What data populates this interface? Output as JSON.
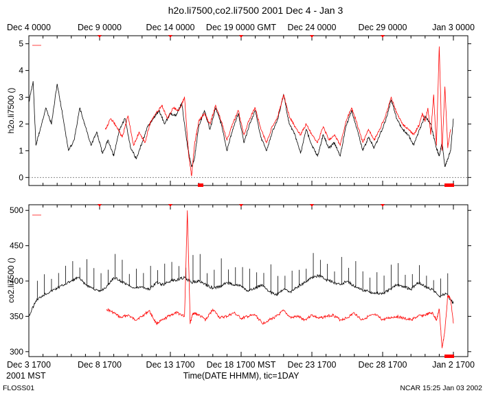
{
  "chart_data": [
    {
      "type": "line",
      "panel": "upper",
      "title": "h2o.li7500,co2.li7500 2001 Dec 4 - Jan 3",
      "ylabel": "h2o.li7500 ()",
      "ylim": [
        -0.3,
        5.3
      ],
      "yticks": [
        0,
        1,
        2,
        3,
        4,
        5
      ],
      "top_axis_labels": [
        "Dec  4 0000",
        "Dec  9 0000",
        "Dec 14 0000",
        "Dec 19 0000 GMT",
        "Dec 24 0000",
        "Dec 29 0000",
        "Jan  3 0000"
      ],
      "zero_reference_line": 0,
      "series": [
        {
          "name": "black",
          "color": "#000000",
          "day": [
            0.0,
            0.3,
            0.5,
            0.8,
            1.2,
            1.6,
            2.0,
            2.4,
            2.8,
            3.2,
            3.6,
            4.0,
            4.4,
            4.8,
            5.2,
            5.6,
            6.0,
            6.4,
            6.8,
            7.2,
            7.6,
            8.0,
            8.4,
            8.8,
            9.2,
            9.6,
            10.0,
            10.4,
            10.8,
            11.2,
            11.5,
            11.7,
            12.0,
            12.4,
            12.8,
            13.2,
            13.6,
            14.0,
            14.4,
            14.8,
            15.2,
            15.6,
            16.0,
            16.4,
            16.8,
            17.2,
            17.6,
            18.0,
            18.4,
            18.8,
            19.2,
            19.6,
            20.0,
            20.4,
            20.8,
            21.2,
            21.6,
            22.0,
            22.4,
            22.8,
            23.2,
            23.6,
            24.0,
            24.4,
            24.8,
            25.2,
            25.6,
            26.0,
            26.4,
            26.8,
            27.2,
            27.6,
            28.0,
            28.4,
            28.8,
            29.0,
            29.2,
            29.4,
            29.6,
            29.8,
            30.0
          ],
          "values": [
            2.8,
            3.6,
            1.2,
            1.8,
            2.6,
            2.0,
            3.5,
            2.3,
            1.0,
            1.4,
            2.6,
            1.9,
            1.2,
            1.7,
            0.9,
            1.4,
            0.8,
            1.8,
            2.2,
            1.1,
            0.7,
            1.3,
            1.9,
            2.2,
            2.5,
            2.0,
            2.4,
            2.3,
            2.8,
            1.2,
            0.4,
            0.7,
            1.9,
            2.5,
            1.8,
            2.6,
            2.0,
            1.0,
            1.8,
            2.4,
            1.3,
            2.0,
            2.5,
            1.5,
            1.0,
            1.7,
            2.2,
            3.1,
            2.0,
            1.6,
            0.9,
            1.8,
            1.2,
            0.8,
            1.6,
            1.1,
            1.3,
            0.8,
            1.9,
            2.5,
            1.8,
            1.0,
            1.5,
            1.1,
            1.6,
            2.1,
            2.9,
            2.2,
            1.8,
            1.6,
            1.2,
            1.8,
            2.3,
            2.0,
            1.1,
            0.8,
            1.3,
            0.4,
            0.7,
            1.0,
            2.2
          ]
        },
        {
          "name": "red",
          "color": "#ff0000",
          "day": [
            5.4,
            5.8,
            6.2,
            6.6,
            7.0,
            7.4,
            7.8,
            8.2,
            8.6,
            9.0,
            9.4,
            9.8,
            10.2,
            10.6,
            11.0,
            11.3,
            11.5,
            11.7,
            12.0,
            12.4,
            12.8,
            13.2,
            13.6,
            14.0,
            14.4,
            14.8,
            15.2,
            15.6,
            16.0,
            16.4,
            16.8,
            17.2,
            17.6,
            18.0,
            18.4,
            18.8,
            19.2,
            19.6,
            20.0,
            20.4,
            20.8,
            21.2,
            21.6,
            22.0,
            22.4,
            22.8,
            23.2,
            23.6,
            24.0,
            24.4,
            24.8,
            25.2,
            25.6,
            26.0,
            26.4,
            26.8,
            27.2,
            27.6,
            27.8,
            28.0,
            28.2,
            28.4,
            28.6,
            28.8,
            29.0,
            29.2,
            29.4,
            29.6,
            29.8
          ],
          "values": [
            1.8,
            2.2,
            1.9,
            1.5,
            2.3,
            1.2,
            1.7,
            1.3,
            2.1,
            2.4,
            2.7,
            2.2,
            2.6,
            2.5,
            3.0,
            0.8,
            0.05,
            1.2,
            2.1,
            2.4,
            2.0,
            2.7,
            2.1,
            1.4,
            2.0,
            2.5,
            1.6,
            2.2,
            2.6,
            1.8,
            1.3,
            1.9,
            2.3,
            3.1,
            2.3,
            1.9,
            1.6,
            2.0,
            1.6,
            1.3,
            1.9,
            1.4,
            1.6,
            1.2,
            2.1,
            2.6,
            2.0,
            1.3,
            1.8,
            1.4,
            1.8,
            2.3,
            3.0,
            2.4,
            2.0,
            1.8,
            1.6,
            2.0,
            2.4,
            2.1,
            2.6,
            1.6,
            3.1,
            1.2,
            4.9,
            1.0,
            3.4,
            1.1,
            1.8
          ]
        }
      ]
    },
    {
      "type": "line",
      "panel": "lower",
      "ylabel": "co2.li7500 ()",
      "ylim": [
        293,
        508
      ],
      "yticks": [
        300,
        350,
        400,
        450,
        500
      ],
      "xlabel": "Time(DATE HHMM), tic=1DAY",
      "bottom_axis_labels": [
        "Dec  3 1700",
        "Dec  8 1700",
        "Dec 13 1700",
        "Dec 18 1700 MST",
        "Dec 23 1700",
        "Dec 28 1700",
        "Jan  2 1700"
      ],
      "series": [
        {
          "name": "black",
          "color": "#000000",
          "day": [
            0.0,
            0.5,
            1.0,
            1.5,
            2.0,
            2.5,
            3.0,
            3.5,
            4.0,
            4.5,
            5.0,
            5.5,
            6.0,
            6.5,
            7.0,
            7.5,
            8.0,
            8.5,
            9.0,
            9.5,
            10.0,
            10.5,
            11.0,
            11.5,
            12.0,
            12.5,
            13.0,
            13.5,
            14.0,
            14.5,
            15.0,
            15.5,
            16.0,
            16.5,
            17.0,
            17.5,
            18.0,
            18.5,
            19.0,
            19.5,
            20.0,
            20.5,
            21.0,
            21.5,
            22.0,
            22.5,
            23.0,
            23.5,
            24.0,
            24.5,
            25.0,
            25.5,
            26.0,
            26.5,
            27.0,
            27.5,
            28.0,
            28.5,
            29.0,
            29.5,
            30.0
          ],
          "values": [
            350,
            372,
            380,
            385,
            390,
            395,
            400,
            405,
            395,
            390,
            385,
            392,
            405,
            400,
            395,
            390,
            392,
            388,
            398,
            395,
            400,
            402,
            405,
            398,
            400,
            395,
            390,
            392,
            398,
            395,
            393,
            385,
            390,
            395,
            385,
            380,
            388,
            385,
            392,
            398,
            405,
            408,
            402,
            398,
            395,
            400,
            392,
            388,
            385,
            383,
            382,
            388,
            395,
            392,
            388,
            398,
            392,
            388,
            378,
            382,
            368
          ]
        },
        {
          "name": "red",
          "color": "#ff0000",
          "day": [
            5.5,
            6.0,
            6.5,
            7.0,
            7.5,
            8.0,
            8.5,
            9.0,
            9.5,
            10.0,
            10.5,
            11.0,
            11.2,
            11.4,
            11.6,
            12.0,
            12.5,
            13.0,
            13.5,
            14.0,
            14.5,
            15.0,
            15.5,
            16.0,
            16.5,
            17.0,
            17.5,
            18.0,
            18.5,
            19.0,
            19.5,
            20.0,
            20.5,
            21.0,
            21.5,
            22.0,
            22.5,
            23.0,
            23.5,
            24.0,
            24.5,
            25.0,
            25.5,
            26.0,
            26.5,
            27.0,
            27.5,
            28.0,
            28.5,
            28.8,
            29.0,
            29.2,
            29.4,
            29.6,
            29.8,
            30.0
          ],
          "values": [
            360,
            355,
            348,
            352,
            345,
            350,
            358,
            340,
            345,
            352,
            355,
            350,
            500,
            340,
            355,
            352,
            345,
            360,
            348,
            350,
            355,
            347,
            350,
            352,
            340,
            345,
            350,
            358,
            348,
            350,
            345,
            352,
            347,
            350,
            352,
            345,
            348,
            355,
            345,
            350,
            352,
            345,
            348,
            350,
            347,
            345,
            350,
            352,
            355,
            345,
            360,
            305,
            330,
            380,
            375,
            340
          ]
        }
      ]
    }
  ],
  "title": "h2o.li7500,co2.li7500 2001 Dec 4 - Jan 3",
  "bottom_left_label": "2001 MST",
  "footer": {
    "left": "FLOSS01",
    "right": "NCAR 15:25 Jan 03 2002"
  },
  "colors": {
    "series_1": "#000000",
    "series_2": "#ff0000",
    "axes": "#000000",
    "zero_line": "#888888"
  }
}
